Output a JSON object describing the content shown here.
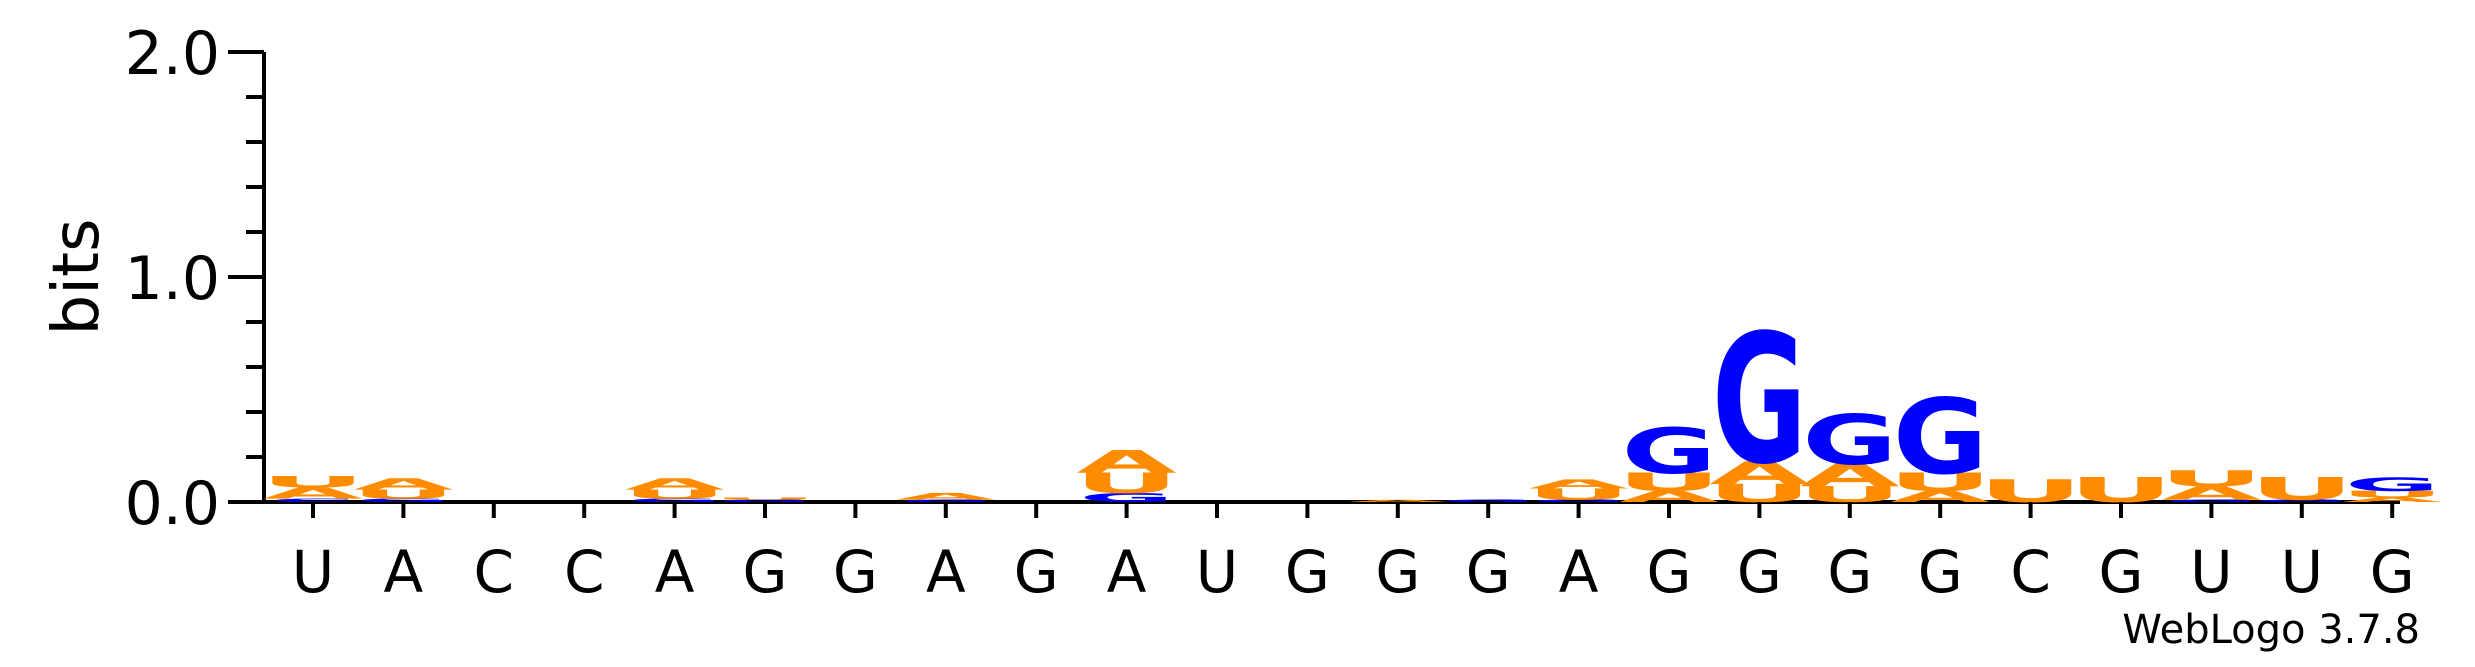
{
  "chart_data": {
    "type": "sequence_logo",
    "ylabel": "bits",
    "ylim": [
      0,
      2.0
    ],
    "yticks": [
      "0.0",
      "1.0",
      "2.0"
    ],
    "credit": "WebLogo 3.7.8",
    "colors": {
      "A": "#ff8c00",
      "U": "#ff8c00",
      "G": "#0000ff",
      "C": "#0000ff"
    },
    "positions": [
      {
        "label": "U",
        "stack": [
          {
            "l": "C",
            "h": 0.015
          },
          {
            "l": "A",
            "h": 0.05
          },
          {
            "l": "U",
            "h": 0.05
          }
        ]
      },
      {
        "label": "A",
        "stack": [
          {
            "l": "G",
            "h": 0.015
          },
          {
            "l": "U",
            "h": 0.04
          },
          {
            "l": "A",
            "h": 0.05
          }
        ]
      },
      {
        "label": "C",
        "stack": []
      },
      {
        "label": "C",
        "stack": []
      },
      {
        "label": "A",
        "stack": [
          {
            "l": "G",
            "h": 0.015
          },
          {
            "l": "U",
            "h": 0.04
          },
          {
            "l": "A",
            "h": 0.05
          }
        ]
      },
      {
        "label": "G",
        "stack": [
          {
            "l": "G",
            "h": 0.01
          },
          {
            "l": "U",
            "h": 0.01
          }
        ]
      },
      {
        "label": "G",
        "stack": []
      },
      {
        "label": "A",
        "stack": [
          {
            "l": "G",
            "h": 0.01
          },
          {
            "l": "A",
            "h": 0.03
          }
        ]
      },
      {
        "label": "G",
        "stack": []
      },
      {
        "label": "A",
        "stack": [
          {
            "l": "G",
            "h": 0.04
          },
          {
            "l": "U",
            "h": 0.09
          },
          {
            "l": "A",
            "h": 0.1
          }
        ]
      },
      {
        "label": "U",
        "stack": []
      },
      {
        "label": "G",
        "stack": []
      },
      {
        "label": "G",
        "stack": [
          {
            "l": "A",
            "h": 0.01
          }
        ]
      },
      {
        "label": "G",
        "stack": [
          {
            "l": "G",
            "h": 0.01
          }
        ]
      },
      {
        "label": "A",
        "stack": [
          {
            "l": "G",
            "h": 0.01
          },
          {
            "l": "U",
            "h": 0.05
          },
          {
            "l": "A",
            "h": 0.04
          }
        ]
      },
      {
        "label": "G",
        "stack": [
          {
            "l": "A",
            "h": 0.05
          },
          {
            "l": "U",
            "h": 0.08
          },
          {
            "l": "G",
            "h": 0.2
          }
        ]
      },
      {
        "label": "G",
        "stack": [
          {
            "l": "U",
            "h": 0.08
          },
          {
            "l": "A",
            "h": 0.1
          },
          {
            "l": "G",
            "h": 0.57
          }
        ]
      },
      {
        "label": "G",
        "stack": [
          {
            "l": "U",
            "h": 0.07
          },
          {
            "l": "A",
            "h": 0.1
          },
          {
            "l": "G",
            "h": 0.22
          }
        ]
      },
      {
        "label": "G",
        "stack": [
          {
            "l": "A",
            "h": 0.05
          },
          {
            "l": "U",
            "h": 0.08
          },
          {
            "l": "G",
            "h": 0.33
          }
        ]
      },
      {
        "label": "C",
        "stack": [
          {
            "l": "U",
            "h": 0.1
          }
        ]
      },
      {
        "label": "G",
        "stack": [
          {
            "l": "U",
            "h": 0.11
          }
        ]
      },
      {
        "label": "U",
        "stack": [
          {
            "l": "G",
            "h": 0.01
          },
          {
            "l": "A",
            "h": 0.06
          },
          {
            "l": "U",
            "h": 0.07
          }
        ]
      },
      {
        "label": "U",
        "stack": [
          {
            "l": "G",
            "h": 0.01
          },
          {
            "l": "U",
            "h": 0.1
          }
        ]
      },
      {
        "label": "G",
        "stack": [
          {
            "l": "A",
            "h": 0.02
          },
          {
            "l": "U",
            "h": 0.03
          },
          {
            "l": "G",
            "h": 0.06
          }
        ]
      }
    ]
  }
}
